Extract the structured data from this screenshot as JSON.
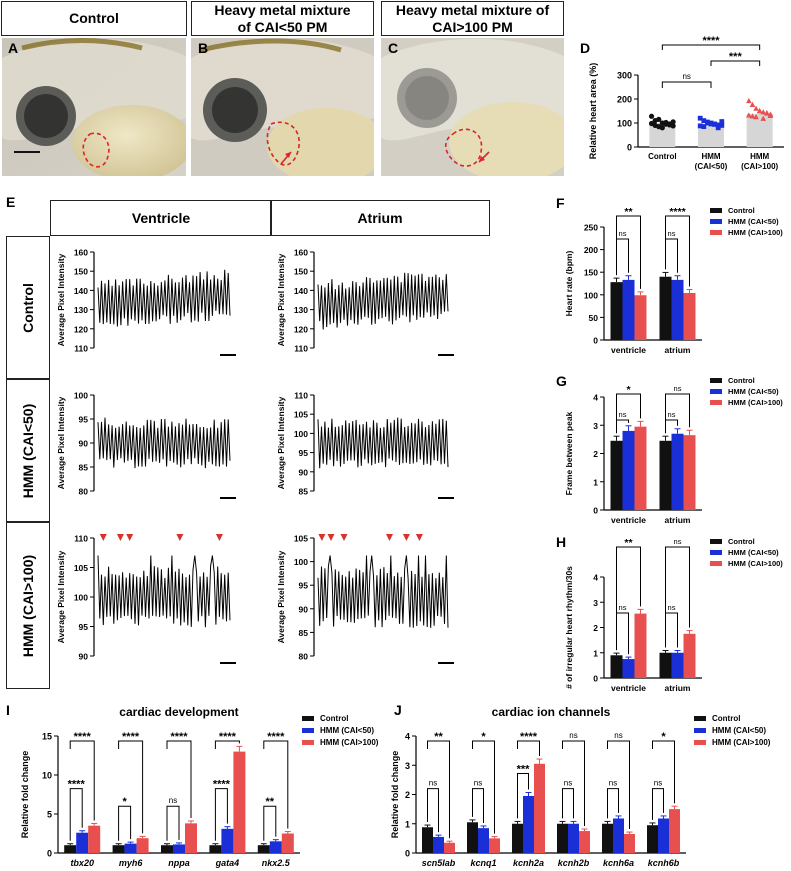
{
  "panels": {
    "A": "A",
    "B": "B",
    "C": "C",
    "D": "D",
    "E": "E",
    "F": "F",
    "G": "G",
    "H": "H",
    "I": "I",
    "J": "J"
  },
  "headers": {
    "control": "Control",
    "hmm_low": "Heavy metal mixture of CAI<50 PM",
    "hmm_high": "Heavy metal mixture of CAI>100 PM"
  },
  "panelE": {
    "col_ventricle": "Ventricle",
    "col_atrium": "Atrium",
    "row_control": "Control",
    "row_hmm_low": "HMM (CAI<50)",
    "row_hmm_high": "HMM (CAI>100)",
    "ylabel": "Average Pixel Intensity",
    "rows": [
      {
        "ventricle_ticks": [
          "110",
          "120",
          "130",
          "140",
          "150",
          "160"
        ],
        "atrium_ticks": [
          "110",
          "120",
          "130",
          "140",
          "150",
          "160"
        ]
      },
      {
        "ventricle_ticks": [
          "80",
          "85",
          "90",
          "95",
          "100"
        ],
        "atrium_ticks": [
          "85",
          "90",
          "95",
          "100",
          "105",
          "110"
        ]
      },
      {
        "ventricle_ticks": [
          "90",
          "95",
          "100",
          "105",
          "110"
        ],
        "atrium_ticks": [
          "80",
          "85",
          "90",
          "95",
          "100",
          "105"
        ]
      }
    ]
  },
  "legend": {
    "control": "Control",
    "hmm_low": "HMM (CAI<50)",
    "hmm_high": "HMM (CAI>100)"
  },
  "colors": {
    "control": "#111111",
    "hmm_low": "#1a2fd6",
    "hmm_high": "#e8504f",
    "arrow": "#d8322c"
  },
  "chart_data": [
    {
      "id": "D",
      "type": "bar",
      "ylabel": "Relative heart area (%)",
      "categories": [
        "Control",
        "HMM\n(CAI<50)",
        "HMM\n(CAI>100)"
      ],
      "values": [
        100,
        98,
        138
      ],
      "yticks": [
        "0",
        "100",
        "200",
        "300"
      ],
      "ylim": [
        0,
        300
      ],
      "significance": [
        "ns",
        "***",
        "****"
      ]
    },
    {
      "id": "F",
      "type": "bar",
      "ylabel": "Heart rate (bpm)",
      "categories": [
        "ventricle",
        "atrium"
      ],
      "series": [
        {
          "name": "Control",
          "values": [
            128,
            140
          ]
        },
        {
          "name": "HMM (CAI<50)",
          "values": [
            133,
            133
          ]
        },
        {
          "name": "HMM (CAI>100)",
          "values": [
            99,
            104
          ]
        }
      ],
      "yticks": [
        "0",
        "50",
        "100",
        "150",
        "200",
        "250"
      ],
      "ylim": [
        0,
        250
      ],
      "significance": [
        "ns",
        "**",
        "ns",
        "****"
      ]
    },
    {
      "id": "G",
      "type": "bar",
      "ylabel": "Frame between peak",
      "categories": [
        "ventricle",
        "atrium"
      ],
      "series": [
        {
          "name": "Control",
          "values": [
            2.45,
            2.45
          ]
        },
        {
          "name": "HMM (CAI<50)",
          "values": [
            2.8,
            2.7
          ]
        },
        {
          "name": "HMM (CAI>100)",
          "values": [
            2.95,
            2.65
          ]
        }
      ],
      "yticks": [
        "0",
        "1",
        "2",
        "3",
        "4"
      ],
      "ylim": [
        0,
        4
      ],
      "significance": [
        "ns",
        "*",
        "ns",
        "ns"
      ]
    },
    {
      "id": "H",
      "type": "bar",
      "ylabel": "# of irregular heart rhythm/30s",
      "categories": [
        "ventricle",
        "atrium"
      ],
      "series": [
        {
          "name": "Control",
          "values": [
            0.9,
            1.0
          ]
        },
        {
          "name": "HMM (CAI<50)",
          "values": [
            0.75,
            1.0
          ]
        },
        {
          "name": "HMM (CAI>100)",
          "values": [
            2.55,
            1.75
          ]
        }
      ],
      "yticks": [
        "0",
        "1",
        "2",
        "3",
        "4"
      ],
      "ylim": [
        0,
        4
      ],
      "significance": [
        "ns",
        "**",
        "ns",
        "ns"
      ]
    },
    {
      "id": "I",
      "type": "bar",
      "title": "cardiac development",
      "ylabel": "Relative fold change",
      "categories": [
        "tbx20",
        "myh6",
        "nppa",
        "gata4",
        "nkx2.5"
      ],
      "series": [
        {
          "name": "Control",
          "values": [
            1.0,
            1.0,
            1.0,
            1.0,
            1.0
          ]
        },
        {
          "name": "HMM (CAI<50)",
          "values": [
            2.6,
            1.2,
            1.1,
            3.1,
            1.5
          ]
        },
        {
          "name": "HMM (CAI>100)",
          "values": [
            3.5,
            1.9,
            3.8,
            13.0,
            2.5
          ]
        }
      ],
      "yticks": [
        "0",
        "5",
        "10",
        "15"
      ],
      "ylim": [
        0,
        15
      ],
      "significance_inner": [
        "****",
        "*",
        "ns",
        "****",
        "**"
      ],
      "significance_outer": [
        "****",
        "****",
        "****",
        "****",
        "****"
      ]
    },
    {
      "id": "J",
      "type": "bar",
      "title": "cardiac ion channels",
      "ylabel": "Relative fold change",
      "categories": [
        "scn5lab",
        "kcnq1",
        "kcnh2a",
        "kcnh2b",
        "kcnh6a",
        "kcnh6b"
      ],
      "series": [
        {
          "name": "Control",
          "values": [
            0.88,
            1.05,
            1.0,
            1.0,
            1.0,
            0.95
          ]
        },
        {
          "name": "HMM (CAI<50)",
          "values": [
            0.55,
            0.85,
            1.95,
            1.0,
            1.18,
            1.18
          ]
        },
        {
          "name": "HMM (CAI>100)",
          "values": [
            0.35,
            0.5,
            3.05,
            0.75,
            0.65,
            1.5
          ]
        }
      ],
      "yticks": [
        "0",
        "1",
        "2",
        "3",
        "4"
      ],
      "ylim": [
        0,
        4
      ],
      "significance_inner": [
        "ns",
        "ns",
        "***",
        "ns",
        "ns",
        "ns"
      ],
      "significance_outer": [
        "**",
        "*",
        "****",
        "ns",
        "ns",
        "*"
      ]
    }
  ]
}
